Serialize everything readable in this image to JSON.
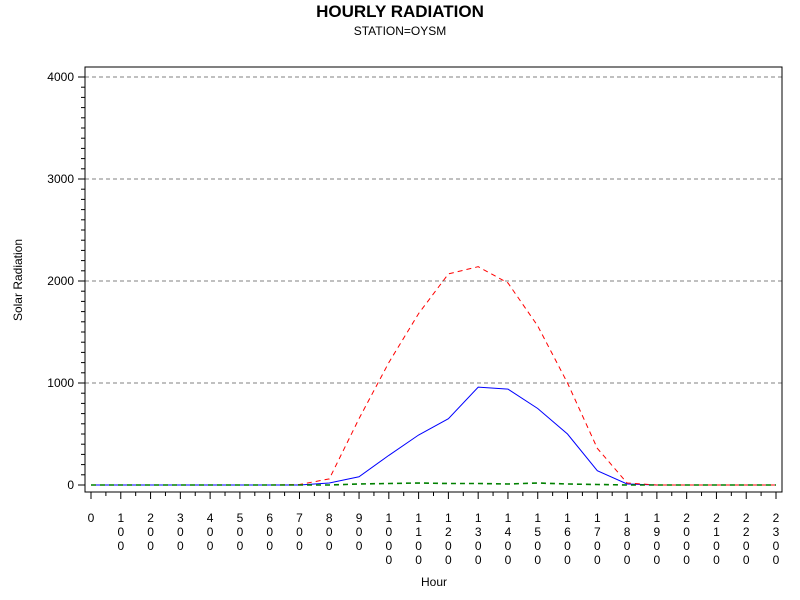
{
  "chart_data": {
    "type": "line",
    "title": "HOURLY RADIATION",
    "subtitle": "STATION=OYSM",
    "xlabel": "Hour",
    "ylabel": "Solar Radiation",
    "ylim": [
      0,
      4000
    ],
    "yticks": [
      "0",
      "1000",
      "2000",
      "3000",
      "4000"
    ],
    "xlim": [
      0,
      2300
    ],
    "x": [
      0,
      100,
      200,
      300,
      400,
      500,
      600,
      700,
      800,
      900,
      1000,
      1100,
      1200,
      1300,
      1400,
      1500,
      1600,
      1700,
      1800,
      1900,
      2000,
      2100,
      2200,
      2300
    ],
    "xtick_labels": [
      "0",
      "100",
      "200",
      "300",
      "400",
      "500",
      "600",
      "700",
      "800",
      "900",
      "1000",
      "1100",
      "1200",
      "1300",
      "1400",
      "1500",
      "1600",
      "1700",
      "1800",
      "1900",
      "2000",
      "2100",
      "2200",
      "2300"
    ],
    "grid": "horizontal dashed",
    "series": [
      {
        "color": "#0000ff",
        "dash": "solid",
        "values": [
          0,
          0,
          0,
          0,
          0,
          0,
          0,
          0,
          20,
          80,
          290,
          490,
          650,
          960,
          940,
          750,
          500,
          140,
          10,
          0,
          0,
          0,
          0,
          0
        ]
      },
      {
        "color": "#ff0000",
        "dash": "dashed",
        "values": [
          0,
          0,
          0,
          0,
          0,
          0,
          0,
          5,
          60,
          650,
          1200,
          1680,
          2070,
          2140,
          1980,
          1560,
          1000,
          360,
          20,
          0,
          0,
          0,
          0,
          0
        ]
      },
      {
        "color": "#008000",
        "dash": "dashed",
        "values": [
          0,
          0,
          0,
          0,
          0,
          0,
          0,
          0,
          0,
          10,
          15,
          20,
          15,
          15,
          10,
          20,
          10,
          5,
          0,
          0,
          0,
          0,
          0,
          0
        ]
      }
    ]
  }
}
